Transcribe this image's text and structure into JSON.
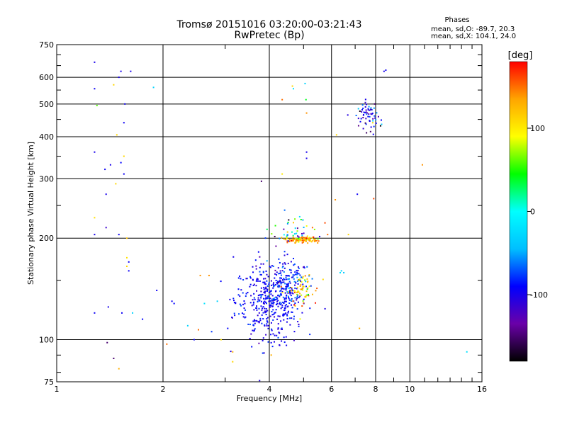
{
  "chart_data": {
    "type": "scatter",
    "title": "Tromsø 20151016 03:20:00-03:21:43",
    "subtitle": "RwPretec (Bp)",
    "xlabel": "Frequency [MHz]",
    "ylabel": "Stationary phase Virtual Height [km]",
    "x_scale": "log2",
    "y_scale": "log",
    "xlim": [
      1,
      16
    ],
    "ylim": [
      75,
      750
    ],
    "x_ticks": [
      1,
      2,
      4,
      6,
      8,
      10,
      16
    ],
    "y_ticks": [
      75,
      100,
      200,
      300,
      400,
      500,
      600,
      750
    ],
    "grid": true,
    "info": {
      "heading": "Phases",
      "line1": "mean, sd,O: -89.7, 20.3",
      "line2": "mean, sd,X: 104.1, 24.0"
    },
    "colorbar": {
      "label": "[deg]",
      "min": -180,
      "max": 180,
      "ticks": [
        100,
        0,
        -100
      ],
      "colormap": [
        "#000000",
        "#6a00a8",
        "#0000ff",
        "#00bfff",
        "#00ffff",
        "#00ff00",
        "#ffff00",
        "#ffa500",
        "#ff0000"
      ]
    },
    "clusters": [
      {
        "x_center": 4.0,
        "x_spread": 0.16,
        "y_center": 130,
        "y_spread": 0.13,
        "phase": -95,
        "phase_spread": 12,
        "count": 420
      },
      {
        "x_center": 4.5,
        "x_spread": 0.1,
        "y_center": 150,
        "y_spread": 0.08,
        "phase": -85,
        "phase_spread": 20,
        "count": 120
      },
      {
        "x_center": 4.9,
        "x_spread": 0.08,
        "y_center": 198,
        "y_spread": 0.01,
        "phase": 125,
        "phase_spread": 25,
        "count": 110
      },
      {
        "x_center": 5.0,
        "x_spread": 0.07,
        "y_center": 140,
        "y_spread": 0.06,
        "phase": 110,
        "phase_spread": 30,
        "count": 60
      },
      {
        "x_center": 7.6,
        "x_spread": 0.05,
        "y_center": 460,
        "y_spread": 0.05,
        "phase": -90,
        "phase_spread": 30,
        "count": 60
      },
      {
        "x_center": 4.6,
        "x_spread": 0.1,
        "y_center": 210,
        "y_spread": 0.05,
        "phase": -40,
        "phase_spread": 80,
        "count": 40
      }
    ],
    "points": [
      {
        "x": 1.28,
        "y": 665,
        "phase": -100
      },
      {
        "x": 1.28,
        "y": 555,
        "phase": -95
      },
      {
        "x": 1.28,
        "y": 360,
        "phase": -100
      },
      {
        "x": 1.28,
        "y": 205,
        "phase": -100
      },
      {
        "x": 1.28,
        "y": 120,
        "phase": -95
      },
      {
        "x": 1.28,
        "y": 230,
        "phase": 105
      },
      {
        "x": 1.3,
        "y": 495,
        "phase": 60
      },
      {
        "x": 1.37,
        "y": 320,
        "phase": -95
      },
      {
        "x": 1.38,
        "y": 270,
        "phase": -100
      },
      {
        "x": 1.38,
        "y": 215,
        "phase": -115
      },
      {
        "x": 1.39,
        "y": 98,
        "phase": -150
      },
      {
        "x": 1.4,
        "y": 125,
        "phase": -100
      },
      {
        "x": 1.42,
        "y": 330,
        "phase": -100
      },
      {
        "x": 1.45,
        "y": 570,
        "phase": 110
      },
      {
        "x": 1.47,
        "y": 290,
        "phase": 110
      },
      {
        "x": 1.48,
        "y": 405,
        "phase": 110
      },
      {
        "x": 1.5,
        "y": 205,
        "phase": -95
      },
      {
        "x": 1.5,
        "y": 600,
        "phase": -100
      },
      {
        "x": 1.52,
        "y": 625,
        "phase": -100
      },
      {
        "x": 1.53,
        "y": 120,
        "phase": -95
      },
      {
        "x": 1.52,
        "y": 335,
        "phase": -90
      },
      {
        "x": 1.55,
        "y": 310,
        "phase": -95
      },
      {
        "x": 1.55,
        "y": 350,
        "phase": 110
      },
      {
        "x": 1.55,
        "y": 440,
        "phase": -95
      },
      {
        "x": 1.56,
        "y": 500,
        "phase": -95
      },
      {
        "x": 1.58,
        "y": 165,
        "phase": 110
      },
      {
        "x": 1.58,
        "y": 200,
        "phase": 120
      },
      {
        "x": 1.58,
        "y": 175,
        "phase": 105
      },
      {
        "x": 1.6,
        "y": 170,
        "phase": -95
      },
      {
        "x": 1.6,
        "y": 160,
        "phase": -95
      },
      {
        "x": 1.62,
        "y": 625,
        "phase": -100
      },
      {
        "x": 1.64,
        "y": 120,
        "phase": -30
      },
      {
        "x": 1.5,
        "y": 82,
        "phase": 130
      },
      {
        "x": 1.45,
        "y": 88,
        "phase": -150
      },
      {
        "x": 1.75,
        "y": 115,
        "phase": -90
      },
      {
        "x": 1.88,
        "y": 560,
        "phase": -30
      },
      {
        "x": 1.92,
        "y": 140,
        "phase": -95
      },
      {
        "x": 2.05,
        "y": 97,
        "phase": 150
      },
      {
        "x": 2.12,
        "y": 130,
        "phase": -95
      },
      {
        "x": 2.15,
        "y": 128,
        "phase": -90
      },
      {
        "x": 2.35,
        "y": 110,
        "phase": -30
      },
      {
        "x": 2.45,
        "y": 100,
        "phase": -95
      },
      {
        "x": 2.52,
        "y": 107,
        "phase": 150
      },
      {
        "x": 2.55,
        "y": 155,
        "phase": 140
      },
      {
        "x": 2.62,
        "y": 128,
        "phase": -20
      },
      {
        "x": 2.7,
        "y": 155,
        "phase": 140
      },
      {
        "x": 2.85,
        "y": 130,
        "phase": -30
      },
      {
        "x": 2.92,
        "y": 100,
        "phase": 105
      },
      {
        "x": 3.05,
        "y": 108,
        "phase": -90
      },
      {
        "x": 3.15,
        "y": 92,
        "phase": 130
      },
      {
        "x": 3.15,
        "y": 86,
        "phase": 110
      },
      {
        "x": 3.8,
        "y": 295,
        "phase": -150
      },
      {
        "x": 4.05,
        "y": 90,
        "phase": 130
      },
      {
        "x": 4.35,
        "y": 310,
        "phase": 100
      },
      {
        "x": 4.35,
        "y": 515,
        "phase": 150
      },
      {
        "x": 4.65,
        "y": 565,
        "phase": 110
      },
      {
        "x": 4.68,
        "y": 555,
        "phase": -20
      },
      {
        "x": 5.05,
        "y": 575,
        "phase": -30
      },
      {
        "x": 5.1,
        "y": 470,
        "phase": 140
      },
      {
        "x": 5.1,
        "y": 360,
        "phase": -100
      },
      {
        "x": 5.1,
        "y": 345,
        "phase": -100
      },
      {
        "x": 5.08,
        "y": 515,
        "phase": 40
      },
      {
        "x": 5.3,
        "y": 215,
        "phase": 150
      },
      {
        "x": 5.75,
        "y": 222,
        "phase": 160
      },
      {
        "x": 5.85,
        "y": 205,
        "phase": 150
      },
      {
        "x": 6.15,
        "y": 260,
        "phase": 140
      },
      {
        "x": 6.2,
        "y": 405,
        "phase": 110
      },
      {
        "x": 6.35,
        "y": 158,
        "phase": -20
      },
      {
        "x": 6.4,
        "y": 160,
        "phase": -30
      },
      {
        "x": 6.5,
        "y": 158,
        "phase": -40
      },
      {
        "x": 6.7,
        "y": 205,
        "phase": 110
      },
      {
        "x": 7.1,
        "y": 270,
        "phase": -95
      },
      {
        "x": 7.2,
        "y": 108,
        "phase": 130
      },
      {
        "x": 7.9,
        "y": 262,
        "phase": 160
      },
      {
        "x": 7.95,
        "y": 500,
        "phase": -150
      },
      {
        "x": 7.85,
        "y": 440,
        "phase": 110
      },
      {
        "x": 8.3,
        "y": 448,
        "phase": -90
      },
      {
        "x": 8.45,
        "y": 625,
        "phase": -100
      },
      {
        "x": 8.55,
        "y": 630,
        "phase": -95
      },
      {
        "x": 10.85,
        "y": 330,
        "phase": 140
      },
      {
        "x": 14.5,
        "y": 92,
        "phase": -20
      }
    ]
  }
}
